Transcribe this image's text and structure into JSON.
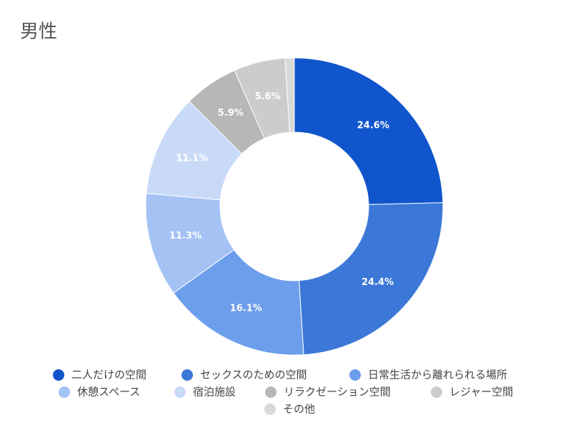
{
  "chart_data": {
    "type": "donut",
    "title": "男性",
    "categories": [
      "二人だけの空間",
      "セックスのための空間",
      "日常生活から離れられる場所",
      "休憩スペース",
      "宿泊施設",
      "リラクゼーション空間",
      "レジャー空間",
      "その他"
    ],
    "values": [
      24.6,
      24.4,
      16.1,
      11.3,
      11.1,
      5.9,
      5.6,
      1.0
    ],
    "value_labels": [
      "24.6%",
      "24.4%",
      "16.1%",
      "11.3%",
      "11.1%",
      "5.9%",
      "5.6%",
      null
    ],
    "colors": [
      "#1155cc",
      "#3c78d8",
      "#6d9eeb",
      "#a4c2f4",
      "#c9daf8",
      "#b7b7b7",
      "#cccccc",
      "#d9d9d9"
    ]
  }
}
